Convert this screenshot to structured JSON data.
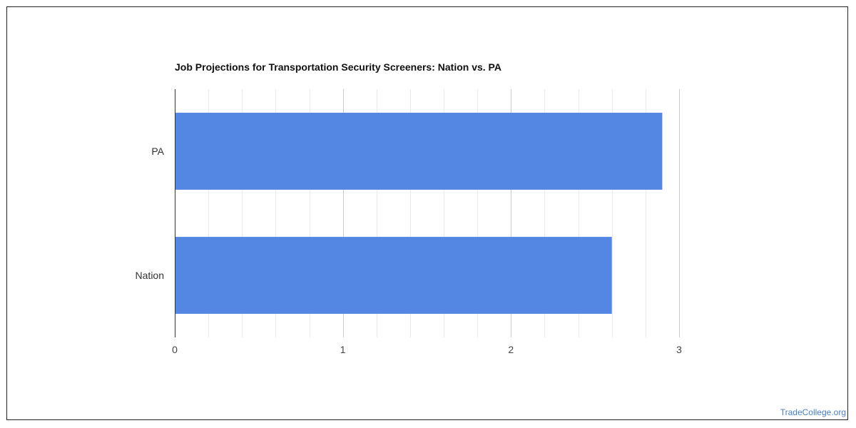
{
  "chart_data": {
    "type": "bar",
    "orientation": "horizontal",
    "title": "Job Projections for Transportation Security Screeners: Nation vs. PA",
    "categories": [
      "PA",
      "Nation"
    ],
    "values": [
      2.9,
      2.6
    ],
    "xlim": [
      0,
      3
    ],
    "xticks": [
      "0",
      "1",
      "2",
      "3"
    ],
    "bar_color": "#5387e3",
    "grid": true
  },
  "watermark": "TradeCollege.org"
}
